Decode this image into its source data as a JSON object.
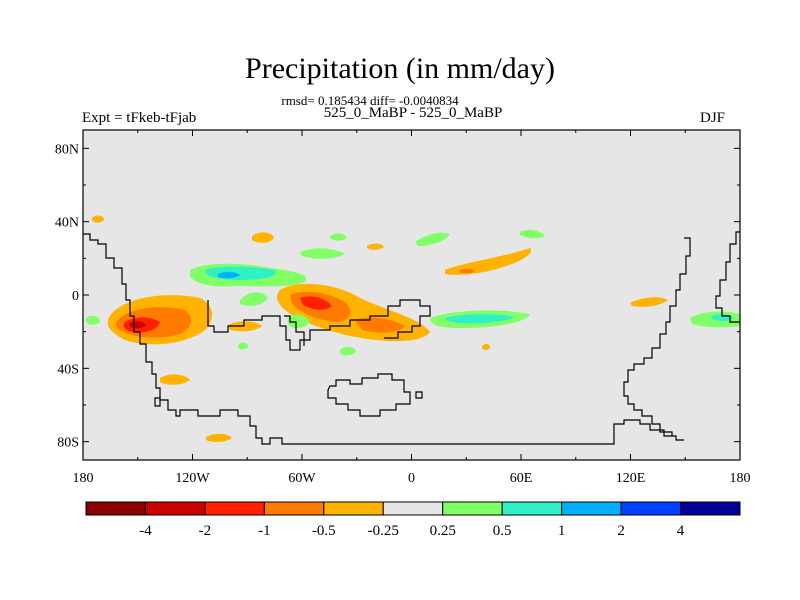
{
  "title": "Precipitation (in mm/day)",
  "stats_line": "rmsd= 0.185434 diff= -0.0040834",
  "left_label": "Expt = tFkeb-tFjab",
  "center_label": "525_0_MaBP - 525_0_MaBP",
  "right_label": "DJF",
  "colors": {
    "background": "#e6e6e6",
    "coastline": "#000000"
  },
  "map": {
    "lon_range": [
      -180,
      180
    ],
    "lat_range": [
      -90,
      90
    ],
    "lat_ticks": [
      {
        "value": 80,
        "label": "80N"
      },
      {
        "value": 40,
        "label": "40N"
      },
      {
        "value": 0,
        "label": "0"
      },
      {
        "value": -40,
        "label": "40S"
      },
      {
        "value": -80,
        "label": "80S"
      }
    ],
    "lon_ticks": [
      {
        "value": -180,
        "label": "180"
      },
      {
        "value": -120,
        "label": "120W"
      },
      {
        "value": -60,
        "label": "60W"
      },
      {
        "value": 0,
        "label": "0"
      },
      {
        "value": 60,
        "label": "60E"
      },
      {
        "value": 120,
        "label": "120E"
      },
      {
        "value": 180,
        "label": "180"
      }
    ]
  },
  "colorbar": {
    "colors": [
      "#8b0000",
      "#cc0000",
      "#ff2000",
      "#ff7a00",
      "#ffb300",
      "#e6e6e6",
      "#80ff66",
      "#30f0c8",
      "#00b0ff",
      "#0040ff",
      "#000099"
    ],
    "labels": [
      "-4",
      "-2",
      "-1",
      "-0.5",
      "-0.25",
      "0.25",
      "0.5",
      "1",
      "2",
      "4"
    ]
  }
}
